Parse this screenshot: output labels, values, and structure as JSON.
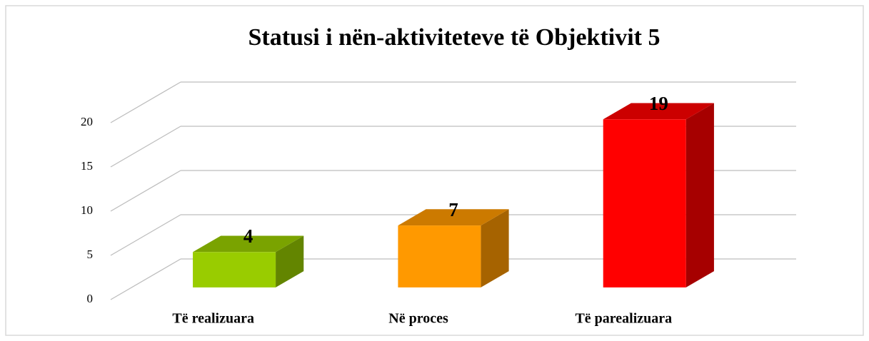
{
  "chart_data": {
    "type": "bar3d",
    "title": "Statusi i nën-aktiviteteve të Objektivit 5",
    "categories": [
      "Të realizuara",
      "Në proces",
      "Të parealizuara"
    ],
    "values": [
      4,
      7,
      19
    ],
    "colors": [
      "#99cc00",
      "#ff9900",
      "#ff0000"
    ],
    "ylim": [
      0,
      20
    ],
    "yticks": [
      0,
      5,
      10,
      15,
      20
    ],
    "grid": true
  }
}
